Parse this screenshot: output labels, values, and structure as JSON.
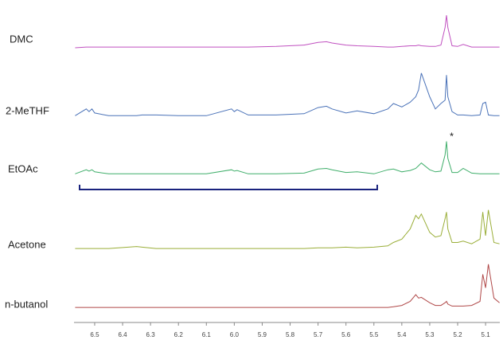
{
  "chart_data": {
    "type": "line",
    "x": [
      6.57,
      6.53,
      6.52,
      6.51,
      6.5,
      6.45,
      6.35,
      6.33,
      6.28,
      6.2,
      6.1,
      6.01,
      6.0,
      5.99,
      5.95,
      5.85,
      5.75,
      5.7,
      5.67,
      5.65,
      5.6,
      5.56,
      5.5,
      5.45,
      5.43,
      5.4,
      5.37,
      5.35,
      5.34,
      5.33,
      5.3,
      5.28,
      5.26,
      5.245,
      5.24,
      5.235,
      5.22,
      5.2,
      5.18,
      5.15,
      5.12,
      5.11,
      5.1,
      5.09,
      5.07,
      5.05
    ],
    "xlim": [
      6.574,
      5.049
    ],
    "xticks": [
      6.5,
      6.4,
      6.3,
      6.2,
      6.1,
      {
        "value": 6,
        "label": "6.0"
      },
      5.9,
      5.8,
      5.7,
      5.6,
      5.5,
      5.4,
      5.3,
      5.2,
      5.1
    ],
    "series": [
      {
        "name": "DMC",
        "color": "#c050c0",
        "values": [
          0,
          1,
          1,
          1,
          1,
          1,
          1,
          1,
          1,
          1,
          1,
          1,
          1,
          1,
          1,
          2,
          4,
          8,
          9,
          7,
          4,
          3,
          2,
          1,
          1,
          2,
          3,
          3,
          4,
          3,
          2,
          2,
          4,
          30,
          48,
          30,
          3,
          2,
          5,
          1,
          1,
          1,
          1,
          1,
          1,
          1
        ]
      },
      {
        "name": "2-MeTHF",
        "color": "#4a72b8",
        "values": [
          2,
          12,
          8,
          12,
          6,
          2,
          2,
          3,
          3,
          2,
          2,
          12,
          8,
          11,
          3,
          3,
          5,
          14,
          16,
          12,
          6,
          9,
          5,
          12,
          20,
          15,
          22,
          30,
          40,
          65,
          30,
          12,
          20,
          25,
          62,
          30,
          8,
          3,
          3,
          2,
          3,
          20,
          22,
          3,
          2,
          2
        ]
      },
      {
        "name": "EtOAc",
        "color": "#3fae6a",
        "values": [
          2,
          8,
          6,
          8,
          5,
          2,
          2,
          2,
          2,
          2,
          2,
          8,
          6,
          7,
          2,
          2,
          3,
          9,
          10,
          8,
          4,
          5,
          2,
          8,
          9,
          5,
          7,
          10,
          14,
          18,
          8,
          5,
          6,
          30,
          50,
          25,
          4,
          4,
          10,
          3,
          2,
          2,
          2,
          2,
          2,
          2
        ]
      },
      {
        "name": "Acetone",
        "color": "#9aae38",
        "values": [
          1,
          1,
          1,
          1,
          1,
          1,
          4,
          3,
          1,
          1,
          1,
          1,
          1,
          1,
          1,
          1,
          1,
          2,
          2,
          2,
          3,
          2,
          3,
          5,
          10,
          15,
          30,
          50,
          45,
          52,
          25,
          18,
          20,
          45,
          55,
          30,
          10,
          10,
          12,
          8,
          15,
          55,
          20,
          58,
          10,
          8
        ]
      },
      {
        "name": "n-butanol",
        "color": "#b04848",
        "values": [
          1,
          1,
          1,
          1,
          1,
          1,
          1,
          1,
          1,
          1,
          1,
          1,
          1,
          1,
          1,
          1,
          1,
          1,
          1,
          1,
          1,
          1,
          1,
          1,
          2,
          4,
          10,
          20,
          15,
          16,
          8,
          4,
          4,
          8,
          10,
          6,
          3,
          3,
          3,
          4,
          10,
          50,
          30,
          65,
          15,
          8
        ]
      }
    ],
    "annotations": [
      "*"
    ]
  }
}
